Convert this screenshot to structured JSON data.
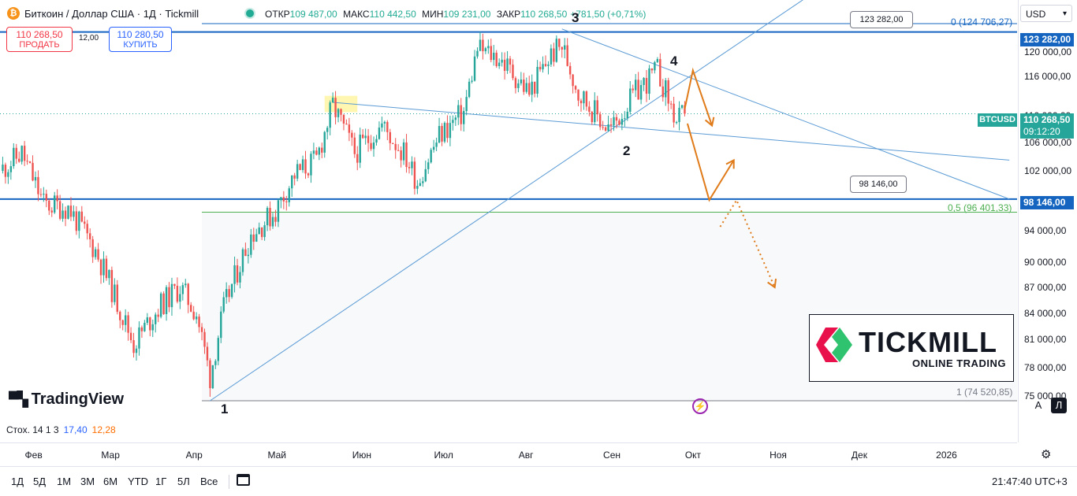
{
  "header": {
    "title": "Биткоин / Доллар США · 1Д · Tickmill",
    "coin_glyph": "₿",
    "o_label": "ОТКР",
    "o": "109 487,00",
    "h_label": "МАКС",
    "h": "110 442,50",
    "l_label": "МИН",
    "l": "109 231,00",
    "c_label": "ЗАКР",
    "c": "110 268,50",
    "change": "+781,50 (+0,71%)"
  },
  "trade": {
    "sell_price": "110 268,50",
    "sell_label": "ПРОДАТЬ",
    "spread": "12,00",
    "buy_price": "110 280,50",
    "buy_label": "КУПИТЬ"
  },
  "currency": "USD",
  "y_ticks": [
    "120 000,00",
    "116 000,00",
    "110 000,00",
    "106 000,00",
    "102 000,00",
    "94 000,00",
    "90 000,00",
    "87 000,00",
    "84 000,00",
    "81 000,00",
    "78 000,00",
    "75 000,00"
  ],
  "tags": {
    "upper": "123 282,00",
    "lower": "98 146,00",
    "symbol": "BTCUSD",
    "last_price": "110 268,50",
    "countdown": "09:12:20"
  },
  "callouts": {
    "upper": "123 282,00",
    "lower": "98 146,00"
  },
  "fib": {
    "level0": "0 (124 706,27)",
    "level05": "0,5 (96 401,33)",
    "level1": "1 (74 520,85)"
  },
  "waves": [
    "1",
    "2",
    "3",
    "4"
  ],
  "x_ticks": [
    "Фев",
    "Мар",
    "Апр",
    "Май",
    "Июн",
    "Июл",
    "Авг",
    "Сен",
    "Окт",
    "Ноя",
    "Дек",
    "2026"
  ],
  "stoch": {
    "label": "Стох. 14 1 3",
    "k": "17,40",
    "d": "12,28"
  },
  "timeframes": [
    "1Д",
    "5Д",
    "1М",
    "3М",
    "6М",
    "YTD",
    "1Г",
    "5Л",
    "Все"
  ],
  "clock": "21:47:40 UTC+3",
  "branding": {
    "tradingview": "TradingView",
    "tickmill": "TICKMILL",
    "tickmill_sub": "ONLINE TRADING"
  },
  "buttons": {
    "auto": "A",
    "log": "Л"
  },
  "colors": {
    "up": "#26a69a",
    "down": "#ef5350",
    "level": "#1565c0",
    "trend": "#5b9bd5",
    "forecast": "#e07b1a",
    "fib_half": "#4caf50"
  },
  "icons": {
    "bolt": "lightning-icon",
    "gear": "gear-icon",
    "calendar": "calendar-icon"
  },
  "chart_data": {
    "type": "candlestick",
    "symbol": "BTCUSD",
    "interval": "1D",
    "title": "Биткоин / Доллар США · 1Д · Tickmill",
    "y_scale": "log",
    "ylim": [
      74000,
      127000
    ],
    "x_range": [
      "2025-01-20",
      "2026-01-25"
    ],
    "last_price": 110268.5,
    "swing_points": [
      {
        "label": "1",
        "date": "2025-04-07",
        "price": 74520.85
      },
      {
        "label": "3",
        "date": "2025-08-14",
        "price": 124706.27
      },
      {
        "label": "2",
        "date": "2025-09-01",
        "price": 107300
      },
      {
        "label": "4",
        "date": "2025-09-19",
        "price": 117900
      }
    ],
    "horizontal_levels": [
      123282.0,
      98146.0
    ],
    "fibonacci": [
      {
        "level": 0,
        "price": 124706.27
      },
      {
        "level": 0.5,
        "price": 96401.33
      },
      {
        "level": 1,
        "price": 74520.85
      }
    ],
    "trendlines": [
      {
        "from": {
          "date": "2025-04-07",
          "price": 74520.85
        },
        "to": {
          "date": "2025-11-20",
          "price": 132000
        }
      },
      {
        "from": {
          "date": "2025-08-14",
          "price": 123800
        },
        "to": {
          "date": "2026-01-25",
          "price": 98146
        }
      },
      {
        "from": {
          "date": "2025-05-22",
          "price": 112000
        },
        "to": {
          "date": "2026-01-25",
          "price": 103500
        }
      }
    ],
    "forecast_path": [
      {
        "date": "2025-09-28",
        "price": 111000
      },
      {
        "date": "2025-10-01",
        "price": 117000
      },
      {
        "date": "2025-10-08",
        "price": 108500
      }
    ],
    "forecast_path_alt": [
      {
        "date": "2025-09-29",
        "price": 108800
      },
      {
        "date": "2025-10-07",
        "price": 98000
      },
      {
        "date": "2025-10-16",
        "price": 103500
      }
    ],
    "forecast_dotted": [
      {
        "date": "2025-10-11",
        "price": 94500
      },
      {
        "date": "2025-10-17",
        "price": 98000
      },
      {
        "date": "2025-10-31",
        "price": 87000
      }
    ],
    "highlight_zone": {
      "from": "2025-05-19",
      "to": "2025-05-31",
      "price_low": 110500,
      "price_high": 113000
    },
    "stochastic": {
      "params": "14 1 3",
      "k": 17.4,
      "d": 12.28
    },
    "anchors": [
      {
        "date": "2025-01-20",
        "c": 102000
      },
      {
        "date": "2025-01-28",
        "c": 104500
      },
      {
        "date": "2025-02-05",
        "c": 97500
      },
      {
        "date": "2025-02-14",
        "c": 97000
      },
      {
        "date": "2025-02-24",
        "c": 91500
      },
      {
        "date": "2025-03-03",
        "c": 86000
      },
      {
        "date": "2025-03-10",
        "c": 80500
      },
      {
        "date": "2025-03-20",
        "c": 85000
      },
      {
        "date": "2025-03-27",
        "c": 87000
      },
      {
        "date": "2025-04-02",
        "c": 84000
      },
      {
        "date": "2025-04-07",
        "c": 77000
      },
      {
        "date": "2025-04-12",
        "c": 84500
      },
      {
        "date": "2025-04-22",
        "c": 93500
      },
      {
        "date": "2025-05-01",
        "c": 96500
      },
      {
        "date": "2025-05-08",
        "c": 101500
      },
      {
        "date": "2025-05-16",
        "c": 103500
      },
      {
        "date": "2025-05-22",
        "c": 111500
      },
      {
        "date": "2025-05-30",
        "c": 104500
      },
      {
        "date": "2025-06-09",
        "c": 108500
      },
      {
        "date": "2025-06-17",
        "c": 104500
      },
      {
        "date": "2025-06-22",
        "c": 100500
      },
      {
        "date": "2025-06-30",
        "c": 107000
      },
      {
        "date": "2025-07-09",
        "c": 110500
      },
      {
        "date": "2025-07-14",
        "c": 120500
      },
      {
        "date": "2025-07-22",
        "c": 119000
      },
      {
        "date": "2025-08-02",
        "c": 113500
      },
      {
        "date": "2025-08-10",
        "c": 119500
      },
      {
        "date": "2025-08-14",
        "c": 121000
      },
      {
        "date": "2025-08-20",
        "c": 113500
      },
      {
        "date": "2025-08-30",
        "c": 108500
      },
      {
        "date": "2025-09-01",
        "c": 108000
      },
      {
        "date": "2025-09-10",
        "c": 113500
      },
      {
        "date": "2025-09-18",
        "c": 117000
      },
      {
        "date": "2025-09-25",
        "c": 109000
      },
      {
        "date": "2025-09-28",
        "c": 110268.5
      }
    ]
  }
}
